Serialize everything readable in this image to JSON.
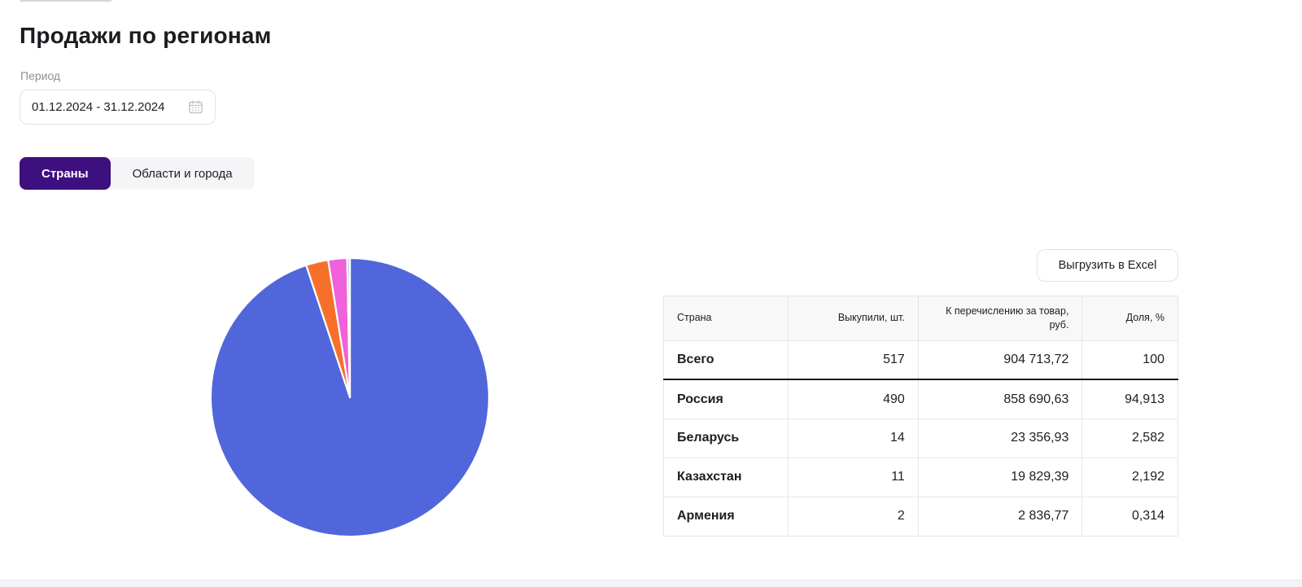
{
  "page": {
    "title": "Продажи по регионам"
  },
  "period": {
    "label": "Период",
    "value": "01.12.2024 - 31.12.2024"
  },
  "tabs": [
    {
      "label": "Страны",
      "active": true
    },
    {
      "label": "Области и города",
      "active": false
    }
  ],
  "export_button": {
    "label": "Выгрузить в Excel"
  },
  "table": {
    "columns": [
      "Страна",
      "Выкупили, шт.",
      "К перечислению за товар, руб.",
      "Доля, %"
    ],
    "rows": [
      {
        "country": "Всего",
        "qty": "517",
        "amount": "904 713,72",
        "share": "100",
        "total": true
      },
      {
        "country": "Россия",
        "qty": "490",
        "amount": "858 690,63",
        "share": "94,913",
        "total": false
      },
      {
        "country": "Беларусь",
        "qty": "14",
        "amount": "23 356,93",
        "share": "2,582",
        "total": false
      },
      {
        "country": "Казахстан",
        "qty": "11",
        "amount": "19 829,39",
        "share": "2,192",
        "total": false
      },
      {
        "country": "Армения",
        "qty": "2",
        "amount": "2 836,77",
        "share": "0,314",
        "total": false
      }
    ]
  },
  "chart_data": {
    "type": "pie",
    "unit": "%",
    "legend": "none",
    "start_angle_deg": 0,
    "direction": "clockwise",
    "slices": [
      {
        "label": "Россия",
        "value": 94.913,
        "color": "#5266db"
      },
      {
        "label": "Беларусь",
        "value": 2.582,
        "color": "#f7702b"
      },
      {
        "label": "Казахстан",
        "value": 2.192,
        "color": "#f161da"
      },
      {
        "label": "Армения",
        "value": 0.314,
        "color": "#a6d3ee"
      }
    ]
  },
  "colors": {
    "accent_purple": "#3e0f7e",
    "table_header_bg": "#f8f8f9",
    "table_border": "#e6e6e9",
    "pie_russia": "#5266db",
    "pie_belarus": "#f7702b",
    "pie_kazakhstan": "#f161da",
    "pie_armenia": "#a6d3ee"
  }
}
